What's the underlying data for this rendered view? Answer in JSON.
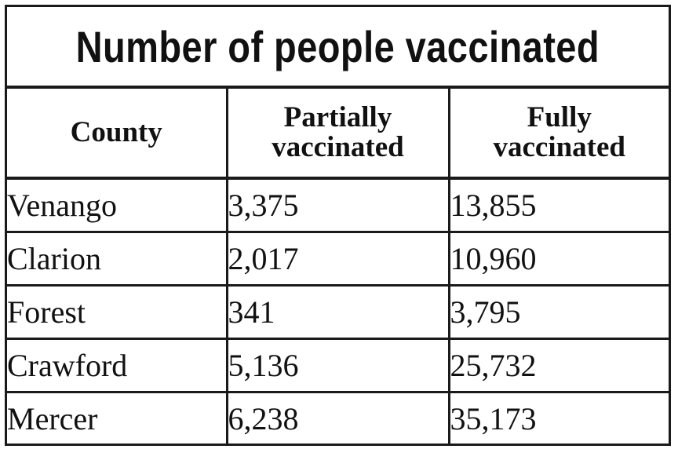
{
  "title": "Number of people vaccinated",
  "headers": {
    "county": "County",
    "partial_line1": "Partially",
    "partial_line2": "vaccinated",
    "full_line1": "Fully",
    "full_line2": "vaccinated"
  },
  "rows": [
    {
      "county": "Venango",
      "partial": "3,375",
      "full": "13,855"
    },
    {
      "county": "Clarion",
      "partial": "2,017",
      "full": "10,960"
    },
    {
      "county": "Forest",
      "partial": "341",
      "full": "3,795"
    },
    {
      "county": "Crawford",
      "partial": "5,136",
      "full": "25,732"
    },
    {
      "county": "Mercer",
      "partial": "6,238",
      "full": "35,173"
    }
  ]
}
